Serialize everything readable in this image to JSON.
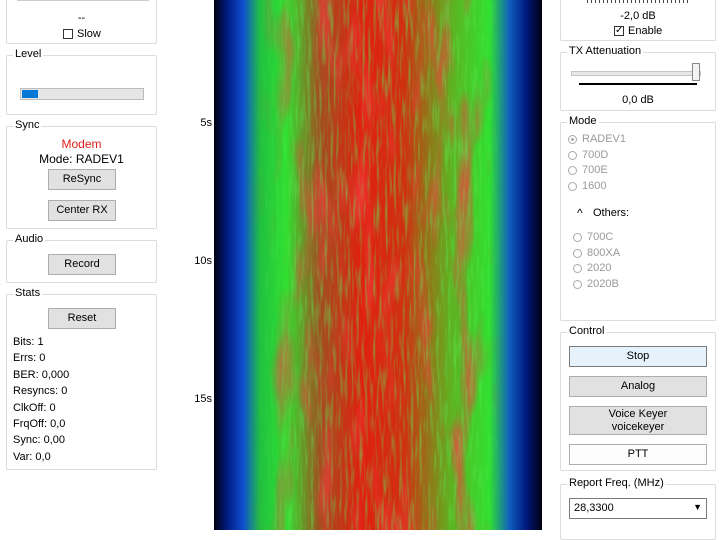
{
  "left": {
    "top_group": {
      "value": "--",
      "slow": "Slow"
    },
    "level": {
      "title": "Level"
    },
    "sync": {
      "title": "Sync",
      "status": "Modem",
      "mode": "Mode: RADEV1",
      "resync": "ReSync",
      "center_rx": "Center RX"
    },
    "audio": {
      "title": "Audio",
      "record": "Record"
    },
    "stats": {
      "title": "Stats",
      "reset": "Reset",
      "lines": [
        "Bits: 1",
        "Errs: 0",
        "BER: 0,000",
        "Resyncs: 0",
        "ClkOff: 0",
        "FrqOff: 0,0",
        "Sync: 0,00",
        "Var:  0,0"
      ]
    }
  },
  "waterfall": {
    "time_labels": [
      "5s",
      "10s",
      "15s"
    ]
  },
  "right": {
    "top_group": {
      "value": "-2,0 dB",
      "enable": "Enable"
    },
    "tx_attenuation": {
      "title": "TX Attenuation",
      "value": "0,0 dB"
    },
    "mode": {
      "title": "Mode",
      "options": [
        "RADEV1",
        "700D",
        "700E",
        "1600"
      ],
      "others": "Others:",
      "other_options": [
        "700C",
        "800XA",
        "2020",
        "2020B"
      ]
    },
    "control": {
      "title": "Control",
      "stop": "Stop",
      "analog": "Analog",
      "voice_keyer": "Voice Keyer",
      "voice_keyer_file": "voicekeyer",
      "ptt": "PTT"
    },
    "report_freq": {
      "title": "Report Freq. (MHz)",
      "value": "28,3300"
    }
  }
}
